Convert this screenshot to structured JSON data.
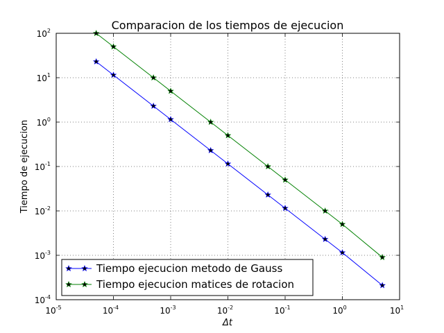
{
  "chart_data": {
    "type": "line",
    "title": "Comparacion de los tiempos de ejecucion",
    "xlabel": "Δt",
    "ylabel": "Tiempo de ejecucion",
    "xscale": "log",
    "yscale": "log",
    "xlim": [
      1e-05,
      10
    ],
    "ylim": [
      0.0001,
      100
    ],
    "grid": true,
    "legend_position": "lower-left",
    "x_ticks": [
      {
        "base": "10",
        "exp": "-5",
        "value": 1e-05
      },
      {
        "base": "10",
        "exp": "-4",
        "value": 0.0001
      },
      {
        "base": "10",
        "exp": "-3",
        "value": 0.001
      },
      {
        "base": "10",
        "exp": "-2",
        "value": 0.01
      },
      {
        "base": "10",
        "exp": "-1",
        "value": 0.1
      },
      {
        "base": "10",
        "exp": "0",
        "value": 1
      },
      {
        "base": "10",
        "exp": "1",
        "value": 10
      }
    ],
    "y_ticks": [
      {
        "base": "10",
        "exp": "-4",
        "value": 0.0001
      },
      {
        "base": "10",
        "exp": "-3",
        "value": 0.001
      },
      {
        "base": "10",
        "exp": "-2",
        "value": 0.01
      },
      {
        "base": "10",
        "exp": "-1",
        "value": 0.1
      },
      {
        "base": "10",
        "exp": "0",
        "value": 1
      },
      {
        "base": "10",
        "exp": "1",
        "value": 10
      },
      {
        "base": "10",
        "exp": "2",
        "value": 100
      }
    ],
    "x": [
      5e-05,
      0.0001,
      0.0005,
      0.001,
      0.005,
      0.01,
      0.05,
      0.1,
      0.5,
      1,
      5
    ],
    "series": [
      {
        "name": "Tiempo ejecucion metodo de Gauss",
        "color": "#0000ff",
        "marker": "star",
        "values": [
          23,
          11.5,
          2.3,
          1.15,
          0.23,
          0.115,
          0.023,
          0.0115,
          0.0023,
          0.00115,
          0.00021
        ]
      },
      {
        "name": "Tiempo ejecucion matices de rotacion",
        "color": "#008000",
        "marker": "star",
        "values": [
          100,
          50,
          10,
          5,
          1,
          0.5,
          0.1,
          0.05,
          0.01,
          0.005,
          0.0009
        ]
      }
    ]
  }
}
